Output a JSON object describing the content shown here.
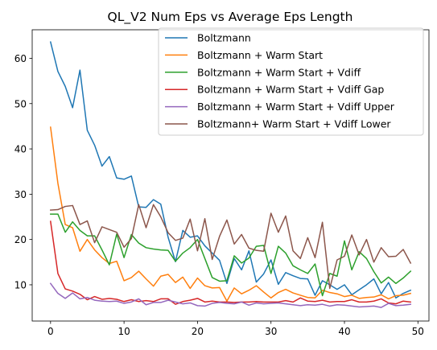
{
  "chart_data": {
    "type": "line",
    "title": "QL_V2 Num Eps vs Average Eps Length",
    "xlabel": "",
    "ylabel": "",
    "xlim": [
      -2.5,
      51.5
    ],
    "ylim": [
      2.0,
      66.3
    ],
    "xticks": [
      0,
      10,
      20,
      30,
      40,
      50
    ],
    "yticks": [
      10,
      20,
      30,
      40,
      50,
      60
    ],
    "grid": false,
    "legend_position": "upper right",
    "x": [
      0,
      1,
      2,
      3,
      4,
      5,
      6,
      7,
      8,
      9,
      10,
      11,
      12,
      13,
      14,
      15,
      16,
      17,
      18,
      19,
      20,
      21,
      22,
      23,
      24,
      25,
      26,
      27,
      28,
      29,
      30,
      31,
      32,
      33,
      34,
      35,
      36,
      37,
      38,
      39,
      40,
      41,
      42,
      43,
      44,
      45,
      46,
      47,
      48,
      49
    ],
    "series": [
      {
        "name": "Boltzmann",
        "color": "#1f77b4",
        "values": [
          63.6,
          57.1,
          53.8,
          49.1,
          57.4,
          44.1,
          40.8,
          36.2,
          38.3,
          33.6,
          33.3,
          34.0,
          27.2,
          27.1,
          28.8,
          27.8,
          20.5,
          15.1,
          22.0,
          20.5,
          20.8,
          18.6,
          17.0,
          15.4,
          10.3,
          15.8,
          13.3,
          17.5,
          10.6,
          12.4,
          15.5,
          10.1,
          12.7,
          12.0,
          11.4,
          11.3,
          7.7,
          10.9,
          10.0,
          9.0,
          10.0,
          7.8,
          8.9,
          10.0,
          11.3,
          8.0,
          10.5,
          7.1,
          8.1,
          8.8
        ]
      },
      {
        "name": "Boltzmann + Warm Start",
        "color": "#ff7f0e",
        "values": [
          44.8,
          32.4,
          23.3,
          22.6,
          17.4,
          20.0,
          17.7,
          16.0,
          14.7,
          15.2,
          10.9,
          11.6,
          13.0,
          11.3,
          9.7,
          11.9,
          12.3,
          10.5,
          11.7,
          9.2,
          11.5,
          9.8,
          9.3,
          9.4,
          6.4,
          9.3,
          8.0,
          8.8,
          9.8,
          8.4,
          7.1,
          8.3,
          9.0,
          8.2,
          7.7,
          7.2,
          7.1,
          8.8,
          8.3,
          8.0,
          7.4,
          7.7,
          7.0,
          7.2,
          7.3,
          7.8,
          6.9,
          7.6,
          7.7,
          8.1
        ]
      },
      {
        "name": "Boltzmann + Warm Start + Vdiff",
        "color": "#2ca02c",
        "values": [
          25.6,
          25.6,
          21.6,
          23.9,
          22.0,
          20.8,
          20.8,
          17.7,
          14.4,
          21.2,
          16.0,
          21.1,
          19.2,
          18.2,
          17.9,
          17.7,
          17.6,
          15.2,
          17.0,
          18.2,
          20.0,
          15.8,
          11.6,
          10.8,
          10.9,
          16.4,
          14.8,
          15.9,
          18.5,
          18.7,
          12.5,
          18.5,
          17.0,
          14.2,
          13.3,
          12.5,
          14.6,
          7.6,
          12.5,
          11.9,
          19.7,
          13.3,
          17.3,
          15.8,
          12.9,
          10.4,
          11.7,
          10.3,
          11.5,
          13.0
        ]
      },
      {
        "name": "Boltzmann + Warm Start + Vdiff Gap",
        "color": "#d62728",
        "values": [
          24.0,
          12.5,
          9.1,
          8.6,
          7.9,
          6.7,
          7.4,
          6.8,
          7.0,
          6.8,
          6.3,
          6.7,
          6.3,
          6.5,
          6.3,
          6.9,
          6.9,
          5.7,
          6.3,
          6.6,
          7.0,
          6.2,
          6.4,
          6.2,
          6.2,
          6.1,
          6.2,
          6.2,
          6.3,
          6.2,
          6.2,
          6.2,
          6.5,
          6.2,
          7.1,
          6.4,
          6.3,
          6.6,
          6.2,
          6.3,
          6.3,
          6.7,
          6.2,
          6.2,
          6.4,
          6.9,
          6.0,
          5.8,
          6.4,
          6.2
        ]
      },
      {
        "name": "Boltzmann + Warm Start + Vdiff Upper",
        "color": "#9467bd",
        "values": [
          10.3,
          8.1,
          7.0,
          8.2,
          6.9,
          7.2,
          6.6,
          6.4,
          6.3,
          6.4,
          5.9,
          6.2,
          6.9,
          5.6,
          6.1,
          6.1,
          6.6,
          6.2,
          5.8,
          6.0,
          5.4,
          5.3,
          5.9,
          6.1,
          5.9,
          5.8,
          6.2,
          5.5,
          6.0,
          5.8,
          5.9,
          6.0,
          5.8,
          5.6,
          5.4,
          5.6,
          5.5,
          5.7,
          5.3,
          5.6,
          5.5,
          5.3,
          5.1,
          5.2,
          5.3,
          5.0,
          5.9,
          5.4,
          5.5,
          5.7
        ]
      },
      {
        "name": "Boltzmann+ Warm Start + Vdiff Lower",
        "color": "#8c564b",
        "values": [
          26.5,
          26.6,
          27.3,
          27.5,
          23.3,
          24.1,
          19.3,
          22.8,
          22.2,
          21.6,
          18.3,
          20.2,
          27.7,
          22.6,
          27.7,
          25.0,
          21.5,
          19.8,
          20.3,
          24.5,
          17.5,
          24.6,
          15.6,
          20.7,
          24.3,
          19.0,
          21.1,
          18.1,
          17.6,
          17.4,
          25.8,
          21.6,
          25.2,
          17.5,
          15.8,
          20.4,
          16.0,
          23.8,
          9.2,
          15.5,
          16.3,
          21.0,
          16.6,
          20.0,
          15.0,
          18.2,
          16.2,
          16.3,
          17.8,
          14.8
        ]
      }
    ]
  }
}
